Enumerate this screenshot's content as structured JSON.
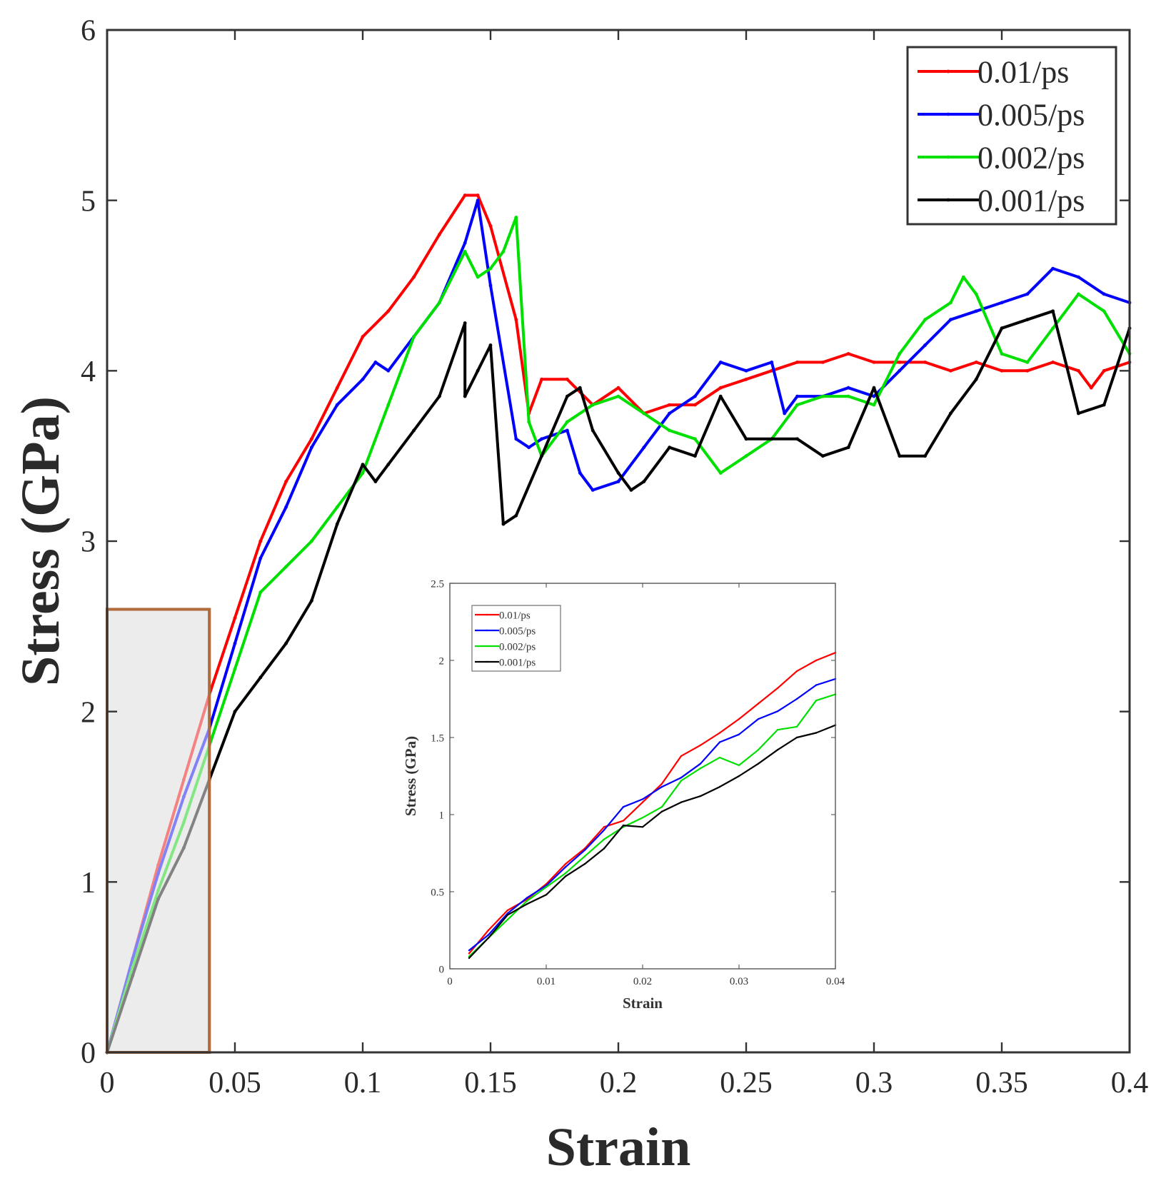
{
  "chart_data": [
    {
      "id": "main",
      "type": "line",
      "title": "",
      "xlabel": "Strain",
      "ylabel": "Stress (GPa)",
      "xlim": [
        0,
        0.4
      ],
      "ylim": [
        0,
        6
      ],
      "xticks": [
        0,
        0.05,
        0.1,
        0.15,
        0.2,
        0.25,
        0.3,
        0.35,
        0.4
      ],
      "xtick_labels": [
        "0",
        "0.05",
        "0.1",
        "0.15",
        "0.2",
        "0.25",
        "0.3",
        "0.35",
        "0.4"
      ],
      "yticks": [
        0,
        1,
        2,
        3,
        4,
        5,
        6
      ],
      "ytick_labels": [
        "0",
        "1",
        "2",
        "3",
        "4",
        "5",
        "6"
      ],
      "grid": false,
      "legend_position": "top-right",
      "highlight_region": {
        "x": [
          0,
          0.04
        ],
        "y": [
          0,
          2.6
        ],
        "note": "zoomed in inset"
      },
      "series": [
        {
          "name": "0.01/ps",
          "color": "#ff0000",
          "x": [
            0,
            0.01,
            0.02,
            0.03,
            0.04,
            0.05,
            0.06,
            0.07,
            0.08,
            0.09,
            0.1,
            0.11,
            0.12,
            0.13,
            0.14,
            0.145,
            0.15,
            0.16,
            0.165,
            0.17,
            0.18,
            0.19,
            0.2,
            0.21,
            0.22,
            0.23,
            0.24,
            0.25,
            0.26,
            0.27,
            0.28,
            0.29,
            0.3,
            0.31,
            0.32,
            0.33,
            0.34,
            0.35,
            0.36,
            0.37,
            0.38,
            0.385,
            0.39,
            0.4
          ],
          "y": [
            0,
            0.55,
            1.1,
            1.6,
            2.1,
            2.55,
            3.0,
            3.35,
            3.6,
            3.9,
            4.2,
            4.35,
            4.55,
            4.8,
            5.03,
            5.03,
            4.85,
            4.3,
            3.75,
            3.95,
            3.95,
            3.8,
            3.9,
            3.75,
            3.8,
            3.8,
            3.9,
            3.95,
            4.0,
            4.05,
            4.05,
            4.1,
            4.05,
            4.05,
            4.05,
            4.0,
            4.05,
            4.0,
            4.0,
            4.05,
            4.0,
            3.9,
            4.0,
            4.05
          ]
        },
        {
          "name": "0.005/ps",
          "color": "#0000ff",
          "x": [
            0,
            0.01,
            0.02,
            0.03,
            0.04,
            0.05,
            0.06,
            0.07,
            0.08,
            0.09,
            0.1,
            0.105,
            0.11,
            0.12,
            0.13,
            0.14,
            0.145,
            0.15,
            0.16,
            0.165,
            0.17,
            0.18,
            0.185,
            0.19,
            0.2,
            0.21,
            0.22,
            0.23,
            0.24,
            0.25,
            0.26,
            0.265,
            0.27,
            0.28,
            0.29,
            0.3,
            0.31,
            0.32,
            0.33,
            0.34,
            0.35,
            0.36,
            0.37,
            0.38,
            0.39,
            0.4
          ],
          "y": [
            0,
            0.55,
            1.05,
            1.5,
            1.9,
            2.4,
            2.9,
            3.2,
            3.55,
            3.8,
            3.95,
            4.05,
            4.0,
            4.2,
            4.4,
            4.75,
            5.0,
            4.5,
            3.6,
            3.55,
            3.6,
            3.65,
            3.4,
            3.3,
            3.35,
            3.55,
            3.75,
            3.85,
            4.05,
            4.0,
            4.05,
            3.75,
            3.85,
            3.85,
            3.9,
            3.85,
            4.0,
            4.15,
            4.3,
            4.35,
            4.4,
            4.45,
            4.6,
            4.55,
            4.45,
            4.4
          ]
        },
        {
          "name": "0.002/ps",
          "color": "#00e000",
          "x": [
            0,
            0.01,
            0.02,
            0.03,
            0.04,
            0.05,
            0.06,
            0.07,
            0.08,
            0.09,
            0.1,
            0.11,
            0.12,
            0.13,
            0.14,
            0.145,
            0.15,
            0.155,
            0.16,
            0.165,
            0.17,
            0.18,
            0.19,
            0.2,
            0.21,
            0.22,
            0.23,
            0.24,
            0.25,
            0.26,
            0.27,
            0.28,
            0.29,
            0.3,
            0.31,
            0.32,
            0.33,
            0.335,
            0.34,
            0.35,
            0.36,
            0.37,
            0.38,
            0.39,
            0.4
          ],
          "y": [
            0,
            0.5,
            0.95,
            1.35,
            1.8,
            2.25,
            2.7,
            2.85,
            3.0,
            3.2,
            3.4,
            3.8,
            4.2,
            4.4,
            4.7,
            4.55,
            4.6,
            4.7,
            4.9,
            3.7,
            3.5,
            3.7,
            3.8,
            3.85,
            3.75,
            3.65,
            3.6,
            3.4,
            3.5,
            3.6,
            3.8,
            3.85,
            3.85,
            3.8,
            4.1,
            4.3,
            4.4,
            4.55,
            4.45,
            4.1,
            4.05,
            4.25,
            4.45,
            4.35,
            4.1
          ]
        },
        {
          "name": "0.001/ps",
          "color": "#000000",
          "x": [
            0,
            0.01,
            0.02,
            0.03,
            0.04,
            0.05,
            0.06,
            0.07,
            0.08,
            0.09,
            0.1,
            0.105,
            0.11,
            0.12,
            0.13,
            0.14,
            0.14,
            0.145,
            0.15,
            0.155,
            0.16,
            0.17,
            0.18,
            0.185,
            0.19,
            0.2,
            0.205,
            0.21,
            0.22,
            0.23,
            0.24,
            0.25,
            0.26,
            0.27,
            0.28,
            0.29,
            0.3,
            0.31,
            0.32,
            0.33,
            0.34,
            0.35,
            0.36,
            0.37,
            0.38,
            0.39,
            0.4
          ],
          "y": [
            0,
            0.45,
            0.9,
            1.2,
            1.6,
            2.0,
            2.2,
            2.4,
            2.65,
            3.1,
            3.45,
            3.35,
            3.45,
            3.65,
            3.85,
            4.28,
            3.85,
            4.0,
            4.15,
            3.1,
            3.15,
            3.5,
            3.85,
            3.9,
            3.65,
            3.4,
            3.3,
            3.35,
            3.55,
            3.5,
            3.85,
            3.6,
            3.6,
            3.6,
            3.5,
            3.55,
            3.9,
            3.5,
            3.5,
            3.75,
            3.95,
            4.25,
            4.3,
            4.35,
            3.75,
            3.8,
            4.25
          ]
        }
      ]
    },
    {
      "id": "inset",
      "type": "line",
      "title": "",
      "xlabel": "Strain",
      "ylabel": "Stress (GPa)",
      "xlim": [
        0,
        0.04
      ],
      "ylim": [
        0,
        2.5
      ],
      "xticks": [
        0,
        0.01,
        0.02,
        0.03,
        0.04
      ],
      "xtick_labels": [
        "0",
        "0.01",
        "0.02",
        "0.03",
        "0.04"
      ],
      "yticks": [
        0,
        0.5,
        1,
        1.5,
        2,
        2.5
      ],
      "ytick_labels": [
        "0",
        "0.5",
        "1",
        "1.5",
        "2",
        "2.5"
      ],
      "grid": false,
      "legend_position": "top-left",
      "series": [
        {
          "name": "0.01/ps",
          "color": "#ff0000",
          "x": [
            0.002,
            0.004,
            0.006,
            0.008,
            0.01,
            0.012,
            0.014,
            0.016,
            0.018,
            0.02,
            0.022,
            0.024,
            0.026,
            0.028,
            0.03,
            0.032,
            0.034,
            0.036,
            0.038,
            0.04
          ],
          "y": [
            0.1,
            0.25,
            0.38,
            0.45,
            0.55,
            0.68,
            0.78,
            0.92,
            0.96,
            1.08,
            1.2,
            1.38,
            1.45,
            1.53,
            1.62,
            1.72,
            1.82,
            1.93,
            2.0,
            2.05
          ]
        },
        {
          "name": "0.005/ps",
          "color": "#0000ff",
          "x": [
            0.002,
            0.004,
            0.006,
            0.008,
            0.01,
            0.012,
            0.014,
            0.016,
            0.018,
            0.02,
            0.022,
            0.024,
            0.026,
            0.028,
            0.03,
            0.032,
            0.034,
            0.036,
            0.038,
            0.04
          ],
          "y": [
            0.12,
            0.22,
            0.36,
            0.46,
            0.54,
            0.66,
            0.77,
            0.9,
            1.05,
            1.1,
            1.18,
            1.24,
            1.33,
            1.47,
            1.52,
            1.62,
            1.67,
            1.75,
            1.84,
            1.88
          ]
        },
        {
          "name": "0.002/ps",
          "color": "#00e000",
          "x": [
            0.002,
            0.004,
            0.006,
            0.008,
            0.01,
            0.012,
            0.014,
            0.016,
            0.018,
            0.02,
            0.022,
            0.024,
            0.026,
            0.028,
            0.03,
            0.032,
            0.034,
            0.036,
            0.038,
            0.04
          ],
          "y": [
            0.08,
            0.2,
            0.32,
            0.44,
            0.53,
            0.62,
            0.73,
            0.84,
            0.92,
            0.98,
            1.05,
            1.22,
            1.3,
            1.37,
            1.32,
            1.42,
            1.55,
            1.57,
            1.74,
            1.78
          ]
        },
        {
          "name": "0.001/ps",
          "color": "#000000",
          "x": [
            0.002,
            0.004,
            0.006,
            0.008,
            0.01,
            0.012,
            0.014,
            0.016,
            0.018,
            0.02,
            0.022,
            0.024,
            0.026,
            0.028,
            0.03,
            0.032,
            0.034,
            0.036,
            0.038,
            0.04
          ],
          "y": [
            0.07,
            0.2,
            0.35,
            0.42,
            0.48,
            0.6,
            0.68,
            0.78,
            0.93,
            0.92,
            1.02,
            1.08,
            1.12,
            1.18,
            1.25,
            1.33,
            1.42,
            1.5,
            1.53,
            1.58
          ]
        }
      ]
    }
  ]
}
